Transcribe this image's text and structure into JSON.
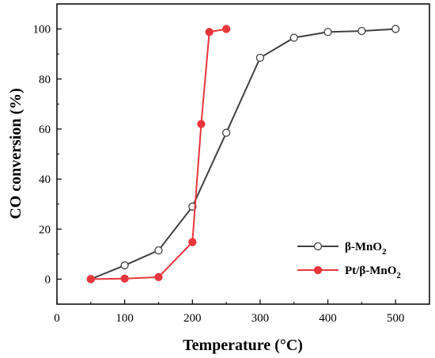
{
  "chart_data": {
    "type": "line",
    "title": "",
    "xlabel": "Temperature (°C)",
    "ylabel": "CO conversion (%)",
    "xlim": [
      0,
      550
    ],
    "ylim": [
      -10,
      110
    ],
    "xticks": [
      0,
      100,
      200,
      300,
      400,
      500
    ],
    "yticks": [
      0,
      20,
      40,
      60,
      80,
      100
    ],
    "grid": false,
    "legend_position": "lower-right",
    "series": [
      {
        "name": "β-MnO2",
        "label_main": "β-MnO",
        "label_sub": "2",
        "color": "#404040",
        "marker": "open-circle",
        "x": [
          50,
          100,
          150,
          200,
          250,
          300,
          350,
          400,
          450,
          500
        ],
        "y": [
          0,
          5.5,
          11.5,
          29,
          58.5,
          88.5,
          96.5,
          98.8,
          99.2,
          100
        ]
      },
      {
        "name": "Pt/β-MnO2",
        "label_main": "Pt/β-MnO",
        "label_sub": "2",
        "color": "#e8363c",
        "marker": "filled-circle",
        "x": [
          50,
          100,
          150,
          200,
          213,
          225,
          250
        ],
        "y": [
          0,
          0.2,
          0.8,
          14.8,
          62,
          98.8,
          100
        ]
      }
    ]
  }
}
